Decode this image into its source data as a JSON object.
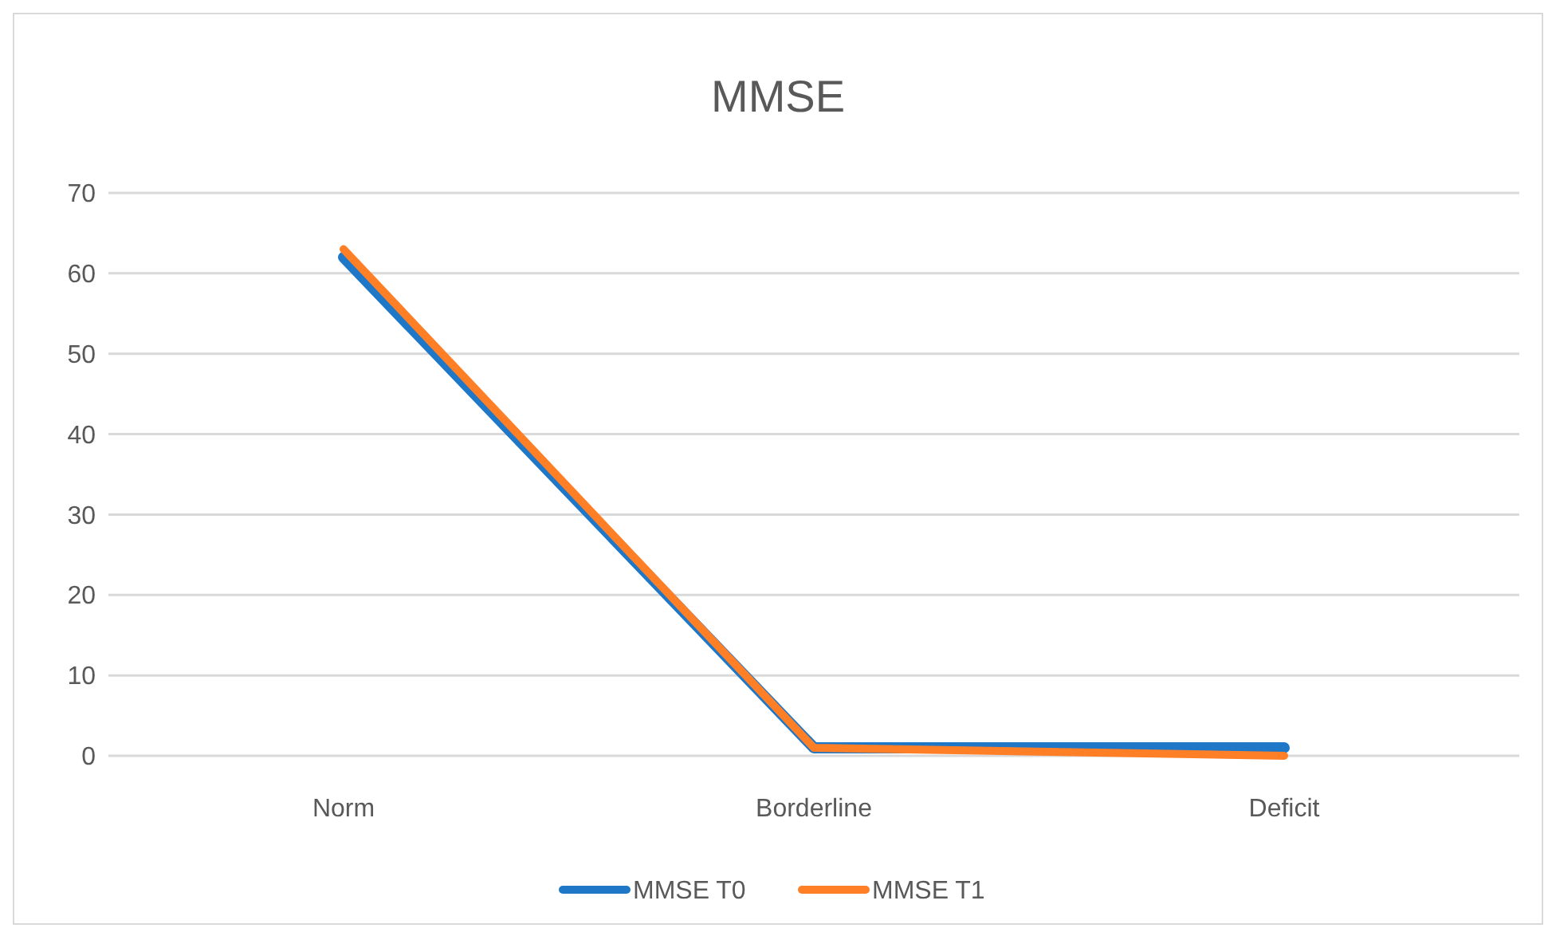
{
  "chart_data": {
    "type": "line",
    "title": "MMSE",
    "categories": [
      "Norm",
      "Borderline",
      "Deficit"
    ],
    "series": [
      {
        "name": "MMSE T0",
        "color": "#1f77c8",
        "values": [
          62,
          1,
          1
        ]
      },
      {
        "name": "MMSE T1",
        "color": "#ff7f27",
        "values": [
          63,
          1,
          0
        ]
      }
    ],
    "ylim": [
      0,
      70
    ],
    "yticks": [
      0,
      10,
      20,
      30,
      40,
      50,
      60,
      70
    ],
    "grid": "y",
    "legend": "bottom",
    "marker": "none",
    "line_style": "solid"
  }
}
